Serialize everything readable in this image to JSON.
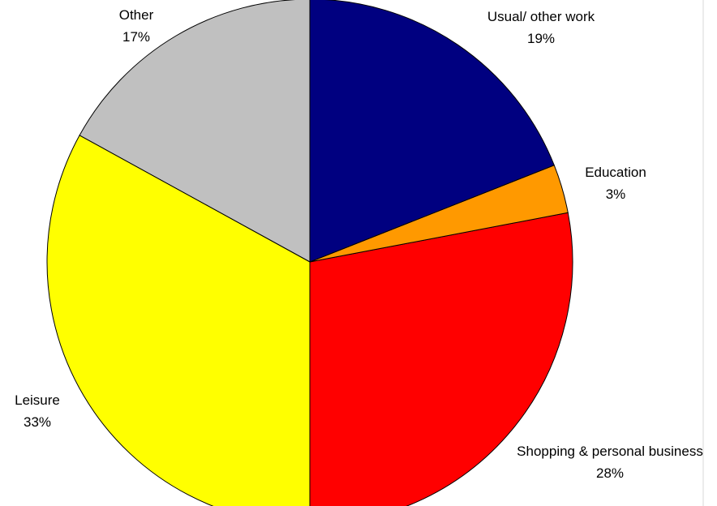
{
  "chart_data": {
    "type": "pie",
    "categories": [
      "Usual/ other work",
      "Education",
      "Shopping & personal business",
      "Leisure",
      "Other"
    ],
    "values": [
      19,
      3,
      28,
      33,
      17
    ],
    "value_labels": [
      "19%",
      "3%",
      "28%",
      "33%",
      "17%"
    ],
    "colors": [
      "#000080",
      "#ff9900",
      "#ff0000",
      "#ffff00",
      "#c0c0c0"
    ]
  }
}
